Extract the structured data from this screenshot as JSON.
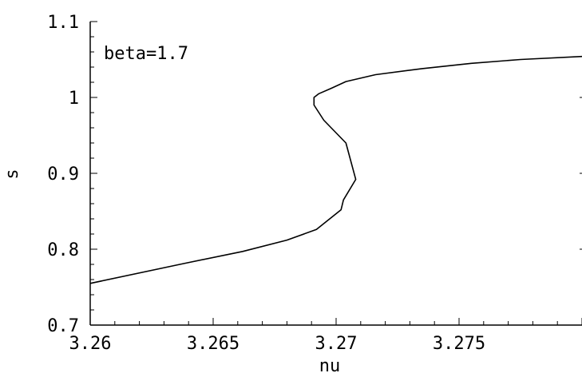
{
  "chart_data": {
    "type": "line",
    "title": "",
    "xlabel": "nu",
    "ylabel": "s",
    "annotation": "beta=1.7",
    "xlim": [
      3.26,
      3.28
    ],
    "ylim": [
      0.7,
      1.1
    ],
    "xticks": [
      3.26,
      3.265,
      3.27,
      3.275
    ],
    "xtick_labels": [
      "3.26",
      "3.265",
      "3.27",
      "3.275"
    ],
    "yticks": [
      0.7,
      0.8,
      0.9,
      1.0,
      1.1
    ],
    "ytick_labels": [
      "0.7",
      "0.8",
      "0.9",
      "1",
      "1.1"
    ],
    "grid": false,
    "series": [
      {
        "x": [
          3.26,
          3.2638,
          3.2662,
          3.268,
          3.2692,
          3.2702,
          3.2703,
          3.2708,
          3.2704,
          3.2695,
          3.2691,
          3.2691,
          3.2693,
          3.2698,
          3.2704,
          3.2716,
          3.2735,
          3.2755,
          3.2775,
          3.28
        ],
        "y": [
          0.755,
          0.781,
          0.797,
          0.812,
          0.826,
          0.852,
          0.865,
          0.892,
          0.94,
          0.97,
          0.99,
          1.0,
          1.005,
          1.012,
          1.021,
          1.03,
          1.038,
          1.045,
          1.05,
          1.054
        ]
      }
    ]
  }
}
